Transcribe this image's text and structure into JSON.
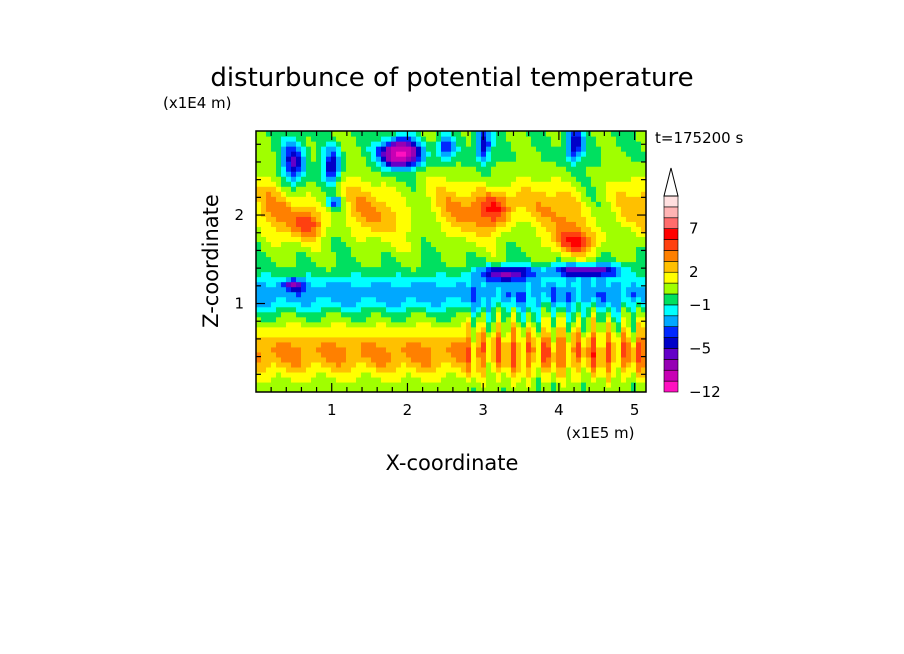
{
  "chart_data": {
    "type": "heatmap",
    "title": "disturbunce of potential temperature",
    "xlabel": "X-coordinate",
    "ylabel": "Z-coordinate",
    "x_unit": "(x1E5 m)",
    "y_unit": "(x1E4 m)",
    "time_label": "t=175200 s",
    "xlim": [
      0,
      5.15
    ],
    "ylim": [
      0,
      2.95
    ],
    "x_ticks": [
      1,
      2,
      3,
      4,
      5
    ],
    "x_tick_labels": [
      "1",
      "2",
      "3",
      "4",
      "5"
    ],
    "y_ticks": [
      1,
      2
    ],
    "y_tick_labels": [
      "1",
      "2"
    ],
    "colorbar": {
      "levels": [
        -12,
        -10,
        -8,
        -6,
        -5,
        -4,
        -3,
        -2,
        -1,
        0,
        1,
        2,
        3,
        4,
        5,
        7,
        9,
        11,
        13
      ],
      "colors": [
        "#ff10c0",
        "#c800b4",
        "#9600b4",
        "#6400c8",
        "#0000c8",
        "#0028ff",
        "#00a8ff",
        "#00ffff",
        "#00e060",
        "#a0ff00",
        "#ffff00",
        "#ffc000",
        "#ff8000",
        "#ff4010",
        "#ff0000",
        "#ff6c6c",
        "#ffb4b4",
        "#ffe0e0"
      ],
      "labeled_levels": [
        -12,
        -5,
        -1,
        2,
        7
      ],
      "labels": [
        "−12",
        "−5",
        "−1",
        "2",
        "7"
      ],
      "extend": "max"
    },
    "grid": false,
    "description_of_field": [
      {
        "region": "near surface band (z 0.1–0.8)",
        "value": 3
      },
      {
        "region": "cold layer (z 0.9–1.35)",
        "value": -2
      },
      {
        "region": "strong cold cells near z 1.3–1.4, x 2.9–4.8",
        "value": -6
      },
      {
        "region": "upper layer (z 1.8–2.9)",
        "value": 3
      },
      {
        "region": "deep cold core near x 1.9, z 2.7",
        "value": -10
      }
    ]
  }
}
